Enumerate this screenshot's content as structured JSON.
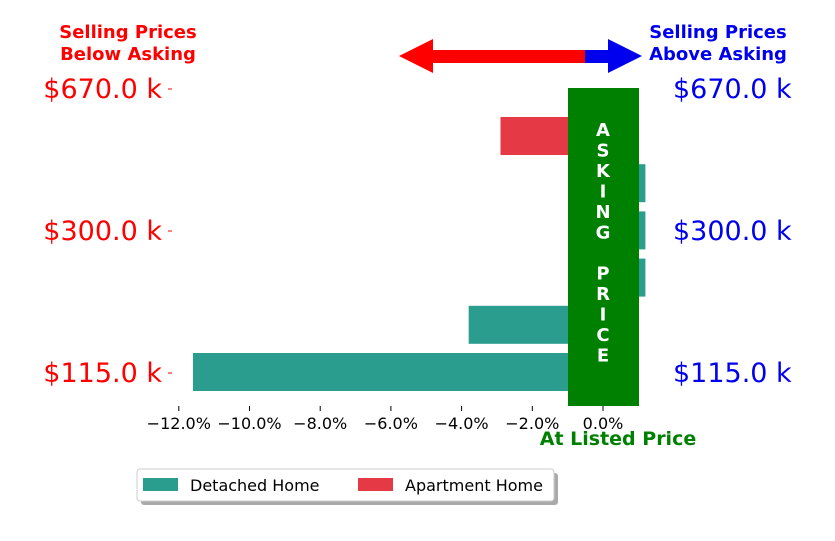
{
  "colors": {
    "below": "#ff0000",
    "above": "#0000ee",
    "detached": "#2a9d8f",
    "apartment": "#e63946",
    "banner": "#008000"
  },
  "header": {
    "below_line1": "Selling Prices",
    "below_line2": "Below Asking",
    "above_line1": "Selling Prices",
    "above_line2": "Above Asking"
  },
  "price_labels": {
    "top": "$670.0 k",
    "mid": "$300.0 k",
    "bottom": "$115.0 k"
  },
  "banner_text": "ASKING PRICE",
  "xlabel": "At Listed Price",
  "chart_data": {
    "type": "bar",
    "orientation": "horizontal",
    "xlim": [
      -12.5,
      1.2
    ],
    "x_ticks": [
      "−12.0%",
      "−10.0%",
      "−8.0%",
      "−6.0%",
      "−4.0%",
      "−2.0%",
      "0.0%"
    ],
    "x_tick_values": [
      -12,
      -10,
      -8,
      -6,
      -4,
      -2,
      0
    ],
    "series": [
      {
        "name": "Detached Home",
        "color": "#2a9d8f",
        "legend_index": 0
      },
      {
        "name": "Apartment Home",
        "color": "#e63946",
        "legend_index": 1
      }
    ],
    "bars": [
      {
        "slot": 5,
        "series": 1,
        "value": -2.9
      },
      {
        "slot": 4,
        "series": 0,
        "value": 1.2
      },
      {
        "slot": 3,
        "series": 0,
        "value": 1.2
      },
      {
        "slot": 2,
        "series": 0,
        "value": 1.2
      },
      {
        "slot": 1,
        "series": 0,
        "value": -3.8
      },
      {
        "slot": 0,
        "series": 0,
        "value": -11.6
      }
    ]
  }
}
